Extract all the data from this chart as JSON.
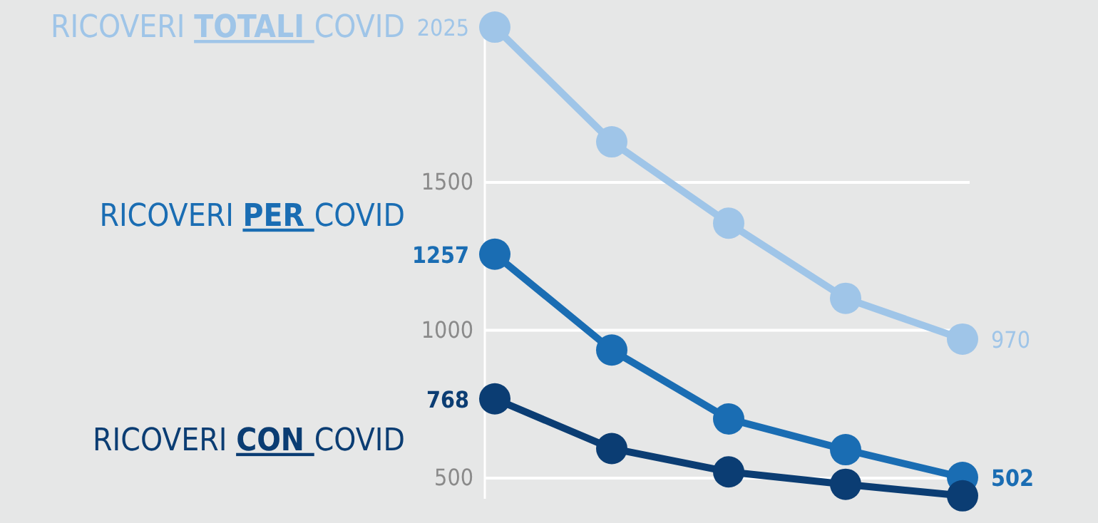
{
  "chart_data": {
    "type": "line",
    "categories": [
      null,
      null,
      null,
      null,
      null
    ],
    "ylim": [
      430,
      2030
    ],
    "yticks": [
      500,
      1000,
      1500
    ],
    "grid": "y",
    "marker": "circle",
    "line_style": "solid",
    "series": [
      {
        "name": "RICOVERI TOTALI COVID",
        "color": "#9fc5e8",
        "values": [
          2025,
          1637,
          1362,
          1108,
          970
        ],
        "value_labels": [
          "2025",
          null,
          null,
          null,
          "970"
        ]
      },
      {
        "name": "RICOVERI PER COVID",
        "color": "#1a6db3",
        "values": [
          1257,
          933,
          700,
          596,
          502
        ],
        "value_labels": [
          "1257",
          null,
          null,
          null,
          "502"
        ]
      },
      {
        "name": "RICOVERI CON COVID",
        "color": "#0b3d73",
        "values": [
          768,
          600,
          521,
          479,
          440
        ],
        "value_labels": [
          "768",
          null,
          null,
          null,
          null
        ]
      }
    ]
  }
}
